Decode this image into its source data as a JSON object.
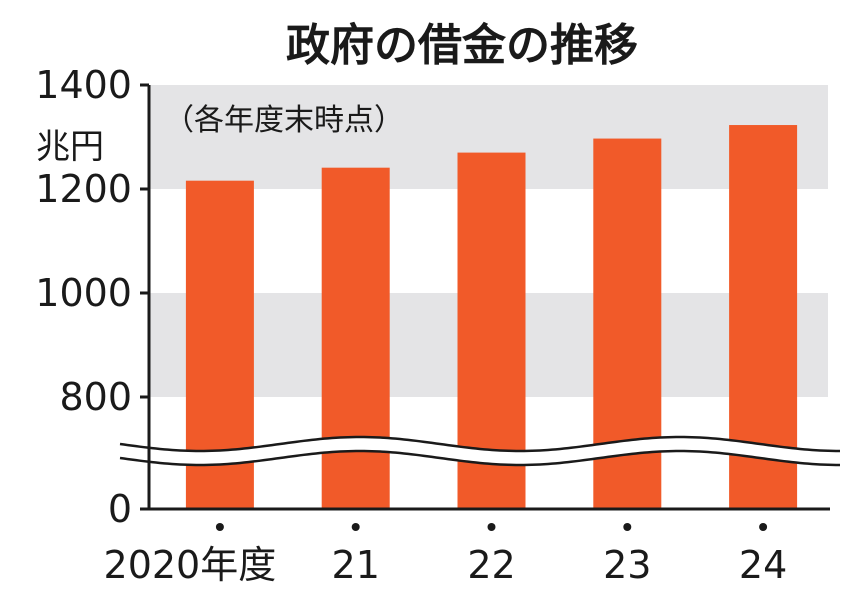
{
  "chart_data": {
    "type": "bar",
    "title": "政府の借金の推移",
    "note": "（各年度末時点）",
    "unit": "兆円",
    "categories": [
      "2020年度",
      "21",
      "22",
      "23",
      "24"
    ],
    "values": [
      1216,
      1241,
      1270,
      1297,
      1323
    ],
    "y_ticks": [
      "1400",
      "1200",
      "1000",
      "800",
      "0"
    ],
    "ylim_upper": [
      700,
      1400
    ],
    "axis_break": true,
    "grid": "alternating horizontal bands",
    "colors": {
      "bar": "#f15a29",
      "band": "#e4e4e6",
      "axis": "#1a1a1a"
    }
  }
}
